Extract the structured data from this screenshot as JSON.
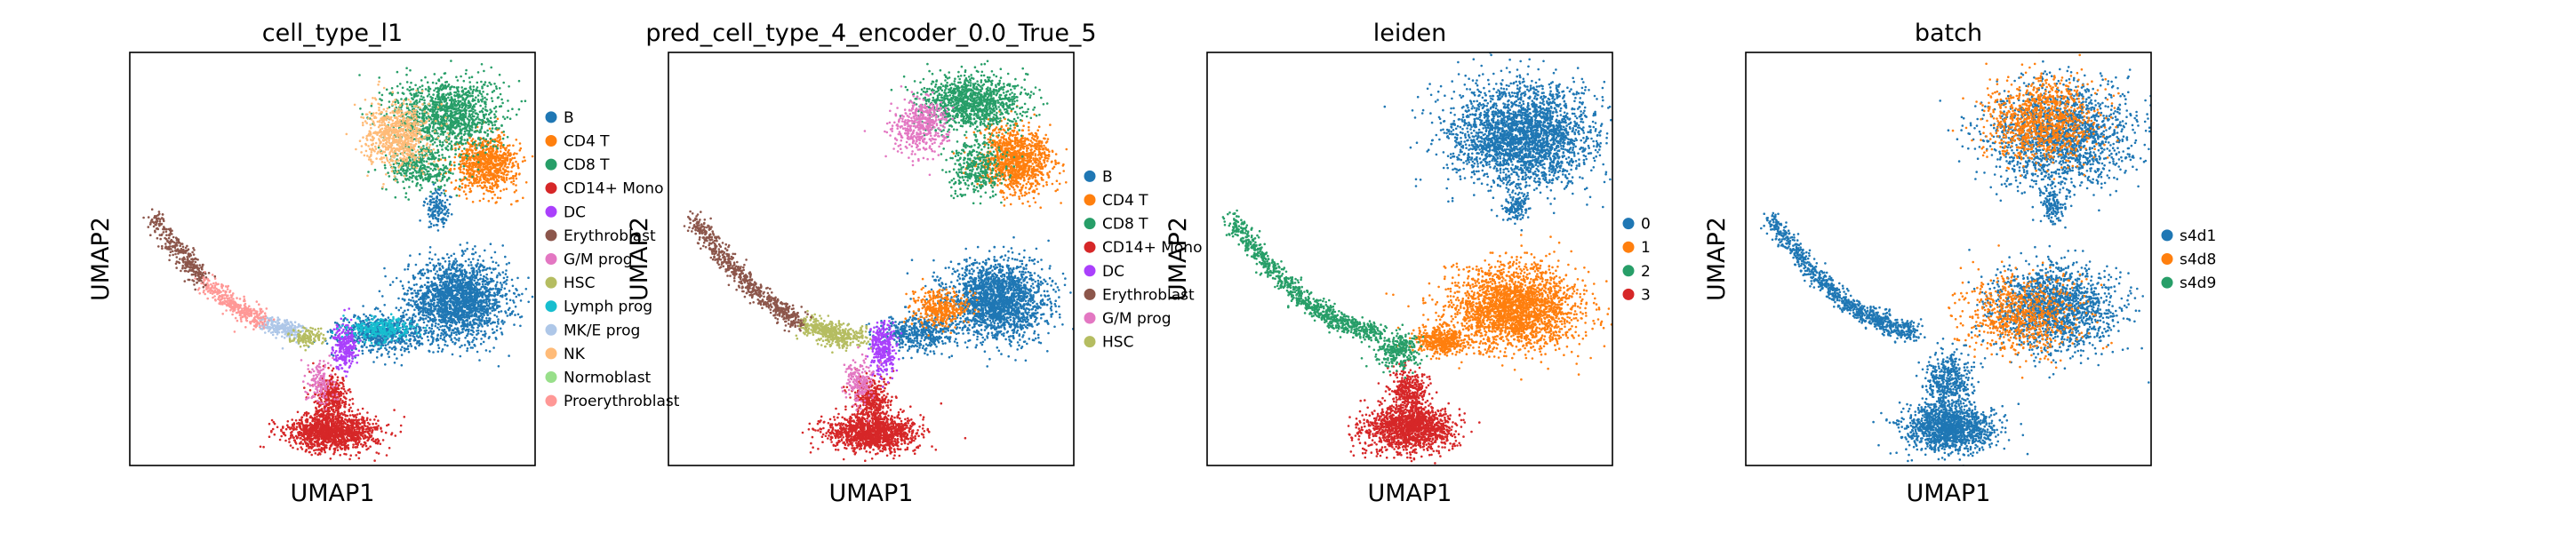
{
  "chart_data": [
    {
      "type": "scatter",
      "title": "cell_type_l1",
      "xlabel": "UMAP1",
      "ylabel": "UMAP2",
      "legend": {
        "placement": "right",
        "entries": [
          {
            "name": "B",
            "color": "#1f77b4"
          },
          {
            "name": "CD4 T",
            "color": "#ff7f0e"
          },
          {
            "name": "CD8 T",
            "color": "#279e68"
          },
          {
            "name": "CD14+ Mono",
            "color": "#d62728"
          },
          {
            "name": "DC",
            "color": "#aa40fc"
          },
          {
            "name": "Erythroblast",
            "color": "#8c564b"
          },
          {
            "name": "G/M prog",
            "color": "#e377c2"
          },
          {
            "name": "HSC",
            "color": "#b5bd61"
          },
          {
            "name": "Lymph prog",
            "color": "#17becf"
          },
          {
            "name": "MK/E prog",
            "color": "#aec7e8"
          },
          {
            "name": "NK",
            "color": "#ffbb78"
          },
          {
            "name": "Normoblast",
            "color": "#98df8a"
          },
          {
            "name": "Proerythroblast",
            "color": "#ff9896"
          }
        ]
      },
      "clusters": [
        {
          "category": "B",
          "cx": 0.81,
          "cy": 0.4,
          "rx": 0.11,
          "ry": 0.085,
          "weight": 2.2
        },
        {
          "category": "B",
          "cx": 0.62,
          "cy": 0.32,
          "rx": 0.09,
          "ry": 0.04,
          "weight": 0.7
        },
        {
          "category": "B",
          "cx": 0.76,
          "cy": 0.62,
          "rx": 0.03,
          "ry": 0.04,
          "weight": 0.15
        },
        {
          "category": "CD4 T",
          "cx": 0.88,
          "cy": 0.73,
          "rx": 0.07,
          "ry": 0.06,
          "weight": 0.9
        },
        {
          "category": "CD8 T",
          "cx": 0.78,
          "cy": 0.85,
          "rx": 0.12,
          "ry": 0.08,
          "weight": 1.4
        },
        {
          "category": "CD8 T",
          "cx": 0.72,
          "cy": 0.72,
          "rx": 0.08,
          "ry": 0.05,
          "weight": 0.4
        },
        {
          "category": "NK",
          "cx": 0.66,
          "cy": 0.8,
          "rx": 0.07,
          "ry": 0.07,
          "weight": 0.8
        },
        {
          "category": "CD14+ Mono",
          "cx": 0.5,
          "cy": 0.08,
          "rx": 0.1,
          "ry": 0.04,
          "weight": 1.4
        },
        {
          "category": "CD14+ Mono",
          "cx": 0.5,
          "cy": 0.16,
          "rx": 0.04,
          "ry": 0.05,
          "weight": 0.4
        },
        {
          "category": "DC",
          "cx": 0.53,
          "cy": 0.29,
          "rx": 0.025,
          "ry": 0.05,
          "weight": 0.3
        },
        {
          "category": "HSC",
          "cx": 0.44,
          "cy": 0.31,
          "rx": 0.04,
          "ry": 0.02,
          "weight": 0.15
        },
        {
          "category": "Lymph prog",
          "cx": 0.62,
          "cy": 0.33,
          "rx": 0.07,
          "ry": 0.025,
          "weight": 0.3
        },
        {
          "category": "G/M prog",
          "cx": 0.47,
          "cy": 0.2,
          "rx": 0.03,
          "ry": 0.05,
          "weight": 0.15
        }
      ],
      "trail": {
        "category_start": "Erythroblast",
        "category_mid": "Proerythroblast",
        "category_end": "MK/E prog",
        "start": [
          0.06,
          0.6
        ],
        "end": [
          0.42,
          0.32
        ]
      }
    },
    {
      "type": "scatter",
      "title": "pred_cell_type_4_encoder_0.0_True_5",
      "xlabel": "UMAP1",
      "ylabel": "UMAP2",
      "legend": {
        "placement": "right",
        "entries": [
          {
            "name": "B",
            "color": "#1f77b4"
          },
          {
            "name": "CD4 T",
            "color": "#ff7f0e"
          },
          {
            "name": "CD8 T",
            "color": "#279e68"
          },
          {
            "name": "CD14+ Mono",
            "color": "#d62728"
          },
          {
            "name": "DC",
            "color": "#aa40fc"
          },
          {
            "name": "Erythroblast",
            "color": "#8c564b"
          },
          {
            "name": "G/M prog",
            "color": "#e377c2"
          },
          {
            "name": "HSC",
            "color": "#b5bd61"
          }
        ]
      },
      "clusters": [
        {
          "category": "B",
          "cx": 0.81,
          "cy": 0.4,
          "rx": 0.11,
          "ry": 0.085,
          "weight": 2.2
        },
        {
          "category": "B",
          "cx": 0.62,
          "cy": 0.32,
          "rx": 0.09,
          "ry": 0.04,
          "weight": 0.5
        },
        {
          "category": "CD4 T",
          "cx": 0.86,
          "cy": 0.74,
          "rx": 0.08,
          "ry": 0.07,
          "weight": 1.2
        },
        {
          "category": "CD4 T",
          "cx": 0.67,
          "cy": 0.38,
          "rx": 0.06,
          "ry": 0.04,
          "weight": 0.4
        },
        {
          "category": "CD8 T",
          "cx": 0.75,
          "cy": 0.88,
          "rx": 0.12,
          "ry": 0.06,
          "weight": 1.2
        },
        {
          "category": "CD8 T",
          "cx": 0.76,
          "cy": 0.72,
          "rx": 0.06,
          "ry": 0.06,
          "weight": 0.4
        },
        {
          "category": "CD14+ Mono",
          "cx": 0.5,
          "cy": 0.08,
          "rx": 0.1,
          "ry": 0.04,
          "weight": 1.4
        },
        {
          "category": "CD14+ Mono",
          "cx": 0.5,
          "cy": 0.16,
          "rx": 0.04,
          "ry": 0.05,
          "weight": 0.4
        },
        {
          "category": "DC",
          "cx": 0.53,
          "cy": 0.28,
          "rx": 0.03,
          "ry": 0.06,
          "weight": 0.35
        },
        {
          "category": "G/M prog",
          "cx": 0.62,
          "cy": 0.82,
          "rx": 0.06,
          "ry": 0.06,
          "weight": 0.5
        },
        {
          "category": "G/M prog",
          "cx": 0.47,
          "cy": 0.2,
          "rx": 0.03,
          "ry": 0.05,
          "weight": 0.2
        },
        {
          "category": "HSC",
          "cx": 0.43,
          "cy": 0.31,
          "rx": 0.05,
          "ry": 0.025,
          "weight": 0.25
        }
      ],
      "trail": {
        "category_start": "Erythroblast",
        "category_mid": "Erythroblast",
        "category_end": "HSC",
        "start": [
          0.06,
          0.6
        ],
        "end": [
          0.42,
          0.32
        ]
      }
    },
    {
      "type": "scatter",
      "title": "leiden",
      "xlabel": "UMAP1",
      "ylabel": "UMAP2",
      "legend": {
        "placement": "right",
        "entries": [
          {
            "name": "0",
            "color": "#1f77b4"
          },
          {
            "name": "1",
            "color": "#ff7f0e"
          },
          {
            "name": "2",
            "color": "#279e68"
          },
          {
            "name": "3",
            "color": "#d62728"
          }
        ]
      },
      "clusters": [
        {
          "category": "0",
          "cx": 0.78,
          "cy": 0.8,
          "rx": 0.16,
          "ry": 0.11,
          "weight": 3.0
        },
        {
          "category": "0",
          "cx": 0.76,
          "cy": 0.63,
          "rx": 0.03,
          "ry": 0.04,
          "weight": 0.15
        },
        {
          "category": "1",
          "cx": 0.76,
          "cy": 0.38,
          "rx": 0.14,
          "ry": 0.09,
          "weight": 2.6
        },
        {
          "category": "1",
          "cx": 0.58,
          "cy": 0.3,
          "rx": 0.06,
          "ry": 0.03,
          "weight": 0.5
        },
        {
          "category": "3",
          "cx": 0.5,
          "cy": 0.09,
          "rx": 0.1,
          "ry": 0.05,
          "weight": 1.6
        },
        {
          "category": "3",
          "cx": 0.5,
          "cy": 0.18,
          "rx": 0.04,
          "ry": 0.05,
          "weight": 0.4
        },
        {
          "category": "2",
          "cx": 0.47,
          "cy": 0.28,
          "rx": 0.05,
          "ry": 0.04,
          "weight": 0.3
        }
      ],
      "trail": {
        "category_start": "2",
        "category_mid": "2",
        "category_end": "2",
        "start": [
          0.06,
          0.6
        ],
        "end": [
          0.42,
          0.32
        ]
      }
    },
    {
      "type": "scatter",
      "title": "batch",
      "xlabel": "UMAP1",
      "ylabel": "UMAP2",
      "legend": {
        "placement": "right",
        "entries": [
          {
            "name": "s4d1",
            "color": "#1f77b4"
          },
          {
            "name": "s4d8",
            "color": "#ff7f0e"
          },
          {
            "name": "s4d9",
            "color": "#279e68"
          }
        ]
      },
      "clusters": [
        {
          "category": "s4d1",
          "cx": 0.78,
          "cy": 0.8,
          "rx": 0.16,
          "ry": 0.11,
          "weight": 1.9
        },
        {
          "category": "s4d8",
          "cx": 0.73,
          "cy": 0.84,
          "rx": 0.12,
          "ry": 0.09,
          "weight": 1.1
        },
        {
          "category": "s4d1",
          "cx": 0.76,
          "cy": 0.38,
          "rx": 0.14,
          "ry": 0.09,
          "weight": 1.8
        },
        {
          "category": "s4d8",
          "cx": 0.68,
          "cy": 0.36,
          "rx": 0.13,
          "ry": 0.08,
          "weight": 0.8
        },
        {
          "category": "s4d1",
          "cx": 0.5,
          "cy": 0.09,
          "rx": 0.1,
          "ry": 0.05,
          "weight": 1.5
        },
        {
          "category": "s4d1",
          "cx": 0.5,
          "cy": 0.2,
          "rx": 0.05,
          "ry": 0.07,
          "weight": 0.5
        },
        {
          "category": "s4d1",
          "cx": 0.76,
          "cy": 0.63,
          "rx": 0.03,
          "ry": 0.04,
          "weight": 0.15
        }
      ],
      "trail": {
        "category_start": "s4d1",
        "category_mid": "s4d1",
        "category_end": "s4d1",
        "start": [
          0.06,
          0.6
        ],
        "end": [
          0.42,
          0.32
        ]
      }
    }
  ]
}
